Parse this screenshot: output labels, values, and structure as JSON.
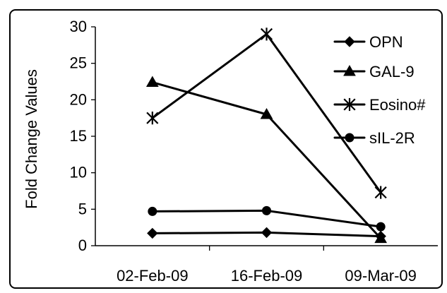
{
  "chart_data": {
    "type": "line",
    "title": "",
    "xlabel": "",
    "ylabel": "Fold Change Values",
    "categories": [
      "02-Feb-09",
      "16-Feb-09",
      "09-Mar-09"
    ],
    "ylim": [
      0,
      30
    ],
    "yticks": [
      0,
      5,
      10,
      15,
      20,
      25,
      30
    ],
    "grid": false,
    "legend_position": "right",
    "series": [
      {
        "name": "OPN",
        "marker": "diamond",
        "values": [
          1.7,
          1.8,
          1.3
        ]
      },
      {
        "name": "GAL-9",
        "marker": "triangle",
        "values": [
          22.4,
          18.0,
          1.0
        ]
      },
      {
        "name": "Eosino#",
        "marker": "asterisk",
        "values": [
          17.5,
          29.0,
          7.3
        ]
      },
      {
        "name": "sIL-2R",
        "marker": "circle",
        "values": [
          4.7,
          4.8,
          2.6
        ]
      }
    ],
    "colors": {
      "line": "#000000",
      "marker": "#000000",
      "axis": "#000000",
      "frame": "#000000",
      "background": "#ffffff"
    }
  }
}
